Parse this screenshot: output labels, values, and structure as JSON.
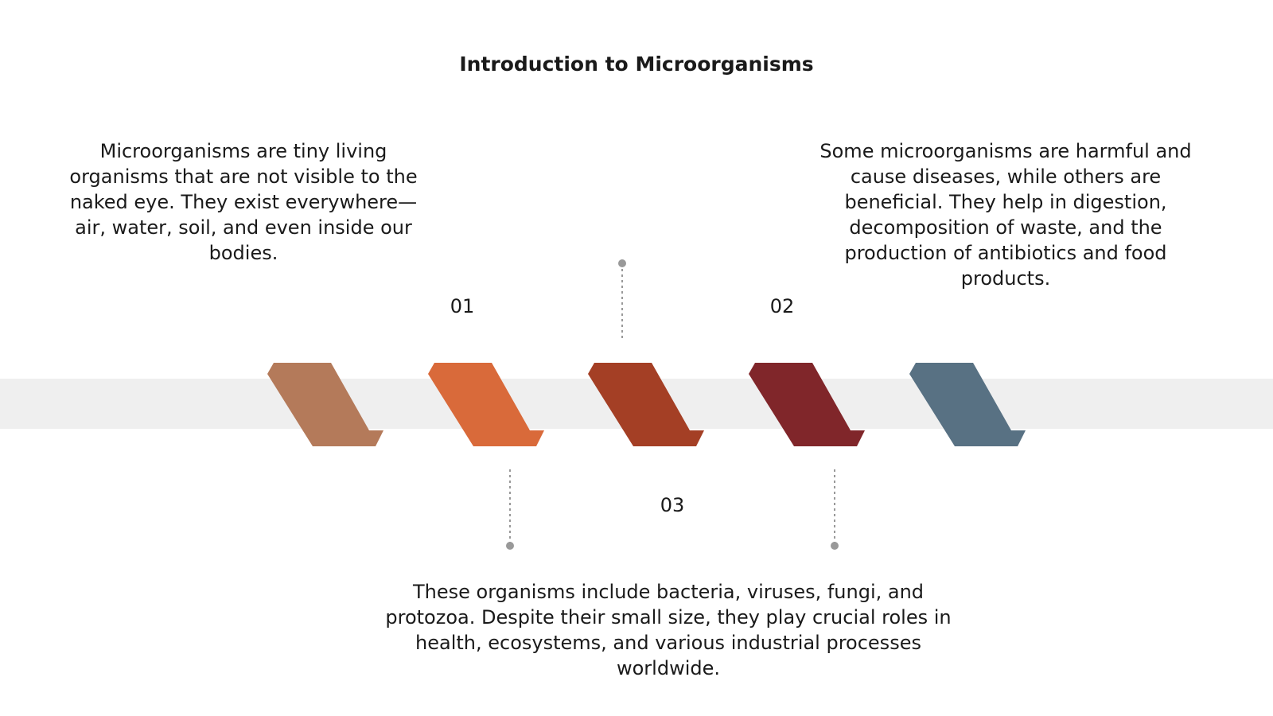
{
  "title": "Introduction to Microorganisms",
  "items": [
    {
      "number": "01",
      "text": "Microorganisms are tiny living organisms that are not visible to the naked eye. They exist everywhere—air, water, soil, and even inside our bodies."
    },
    {
      "number": "02",
      "text": "Some microorganisms are harmful and cause diseases, while others are beneficial. They help in digestion, decomposition of waste, and the production of antibiotics and food products."
    },
    {
      "number": "03",
      "text": "These organisms include bacteria, viruses, fungi, and protozoa. Despite their small size, they play crucial roles in health, ecosystems, and various industrial processes worldwide."
    }
  ]
}
